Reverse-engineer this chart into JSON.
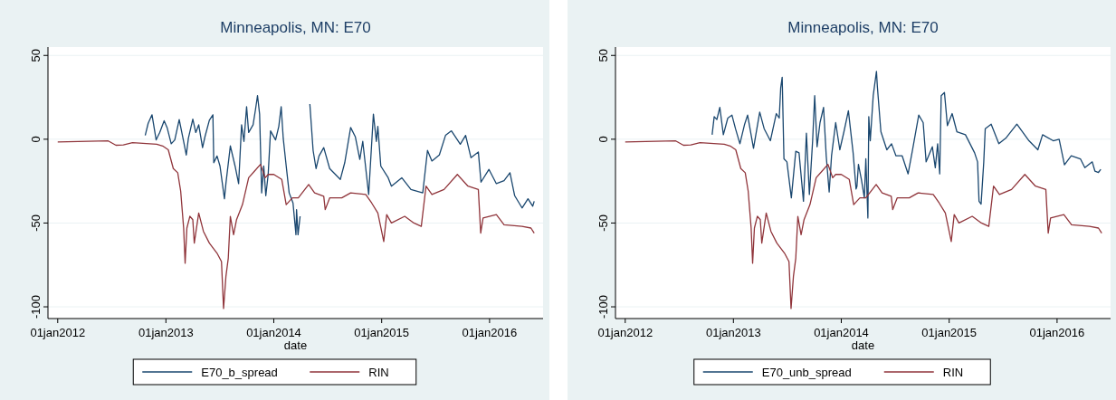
{
  "chart_data": [
    {
      "type": "line",
      "title": "Minneapolis, MN: E70",
      "xlabel": "date",
      "xlim": [
        "2011-11-29",
        "2016-06-30"
      ],
      "xticks": [
        {
          "value": "2012-01-01",
          "label": "01jan2012"
        },
        {
          "value": "2013-01-01",
          "label": "01jan2013"
        },
        {
          "value": "2014-01-01",
          "label": "01jan2014"
        },
        {
          "value": "2015-01-01",
          "label": "01jan2015"
        },
        {
          "value": "2016-01-01",
          "label": "01jan2016"
        }
      ],
      "ylim": [
        -107,
        55
      ],
      "yticks": [
        -100,
        -50,
        0,
        50
      ],
      "grid": "y",
      "legend": "bottom",
      "series": [
        {
          "name": "E70_b_spread",
          "color": "#1a476f",
          "x": [
            "2012-10-23",
            "2012-11-02",
            "2012-11-15",
            "2012-11-29",
            "2012-12-11",
            "2012-12-26",
            "2013-01-05",
            "2013-01-19",
            "2013-01-31",
            "2013-02-15",
            "2013-03-02",
            "2013-03-11",
            "2013-03-18",
            "2013-04-02",
            "2013-04-12",
            "2013-04-22",
            "2013-05-05",
            "2013-05-13",
            "2013-05-28",
            "2013-06-09",
            "2013-06-12",
            "2013-06-23",
            "2013-07-03",
            "2013-07-18",
            "2013-07-23",
            "2013-08-07",
            "2013-08-23",
            "2013-09-04",
            "2013-09-14",
            "2013-09-22",
            "2013-10-01",
            "2013-10-08",
            "2013-10-23",
            "2013-10-31",
            "2013-11-07",
            "2013-11-14",
            "2013-11-21",
            "2013-11-28",
            "2013-12-05",
            "2013-12-13",
            "2013-12-21",
            "2014-01-07",
            "2014-01-18",
            "2014-01-26",
            "2014-02-02",
            "2014-02-12",
            "2014-02-22",
            "2014-03-07",
            "2014-03-17",
            "2014-03-19",
            "2014-03-24",
            "2014-03-31",
            "2014-04-15",
            "2014-05-03",
            "2014-05-14",
            "2014-05-24",
            "2014-06-03",
            "2014-06-19",
            "2014-07-09",
            "2014-08-14",
            "2014-08-29",
            "2014-09-18",
            "2014-10-04",
            "2014-10-19",
            "2014-10-29",
            "2014-11-18",
            "2014-12-04",
            "2014-12-14",
            "2014-12-19",
            "2014-12-29",
            "2015-01-23",
            "2015-02-03",
            "2015-03-10",
            "2015-04-10",
            "2015-05-20",
            "2015-06-05",
            "2015-06-20",
            "2015-07-15",
            "2015-08-05",
            "2015-08-25",
            "2015-09-24",
            "2015-10-12",
            "2015-10-30",
            "2015-11-24",
            "2015-12-03",
            "2015-12-30",
            "2016-01-24",
            "2016-02-19",
            "2016-03-10",
            "2016-03-26",
            "2016-04-20",
            "2016-05-10",
            "2016-05-26",
            "2016-05-31"
          ],
          "values": [
            2.3,
            9.5,
            14.6,
            -0.4,
            4,
            11,
            7,
            -2.7,
            -0.4,
            11.7,
            -1.3,
            -9.4,
            0.5,
            12,
            4,
            8.6,
            -5,
            1.4,
            11.3,
            14.6,
            -14,
            -10,
            -16,
            -35.5,
            -26.5,
            -4,
            -16,
            -26.5,
            8.6,
            -1.3,
            19.4,
            4,
            8.6,
            17.6,
            26,
            15,
            -32,
            -16,
            -33.7,
            -21,
            5,
            -0.4,
            7.7,
            19.4,
            0.5,
            -16,
            -32,
            -38,
            -57,
            -42,
            -57,
            -46,
            null,
            21,
            -6.7,
            -17.5,
            -10,
            -5,
            -17.5,
            -24,
            -14,
            7,
            1.4,
            -12,
            -1.3,
            -33,
            15,
            -1.3,
            7.7,
            -16,
            -23,
            -28,
            -23,
            -30,
            -32,
            -6.7,
            -13,
            -9.4,
            2.3,
            5,
            -3,
            2.3,
            -11,
            -7.6,
            -25.6,
            -18,
            -26.5,
            -24.7,
            -20,
            -33.7,
            -41,
            -35.5,
            -40,
            -37
          ]
        },
        {
          "name": "RIN",
          "color": "#90353b",
          "x": [
            "2012-01-01",
            "2012-06-20",
            "2012-07-16",
            "2012-08-10",
            "2012-09-10",
            "2012-12-01",
            "2012-12-21",
            "2013-01-09",
            "2013-01-26",
            "2013-02-10",
            "2013-02-20",
            "2013-03-02",
            "2013-03-07",
            "2013-03-13",
            "2013-03-23",
            "2013-04-02",
            "2013-04-07",
            "2013-04-22",
            "2013-05-08",
            "2013-05-28",
            "2013-06-23",
            "2013-07-08",
            "2013-07-15",
            "2013-07-23",
            "2013-07-31",
            "2013-08-07",
            "2013-08-18",
            "2013-08-28",
            "2013-09-17",
            "2013-10-08",
            "2013-10-28",
            "2013-11-17",
            "2013-12-03",
            "2013-12-13",
            "2014-01-01",
            "2014-01-28",
            "2014-02-12",
            "2014-03-05",
            "2014-03-25",
            "2014-04-29",
            "2014-05-19",
            "2014-06-19",
            "2014-06-24",
            "2014-07-09",
            "2014-08-19",
            "2014-09-18",
            "2014-11-08",
            "2014-11-28",
            "2014-12-19",
            "2015-01-08",
            "2015-01-18",
            "2015-02-03",
            "2015-03-20",
            "2015-04-20",
            "2015-05-15",
            "2015-05-31",
            "2015-06-20",
            "2015-07-31",
            "2015-09-14",
            "2015-10-20",
            "2015-11-24",
            "2015-12-02",
            "2015-12-10",
            "2016-01-24",
            "2016-02-19",
            "2016-04-20",
            "2016-05-20",
            "2016-05-31"
          ],
          "values": [
            -1.6,
            -1,
            -3.6,
            -3.4,
            -2,
            -3,
            -4,
            -6.3,
            -17.5,
            -20,
            -31,
            -53,
            -74,
            -53,
            -46,
            -48,
            -62,
            -44,
            -55,
            -62,
            -68,
            -73,
            -101,
            -82,
            -71,
            -46,
            -57,
            -48,
            -39,
            -23,
            -19,
            -15,
            -23,
            -21,
            -21,
            -24,
            -39,
            -35,
            -35,
            -27,
            -32,
            -34,
            -42,
            -35,
            -35,
            -32,
            -33,
            -38,
            -44,
            -61,
            -45,
            -50,
            -46,
            -50,
            -52,
            -28,
            -33,
            -30,
            -21,
            -28,
            -30,
            -56,
            -47,
            -45,
            -51,
            -52,
            -53,
            -56
          ]
        }
      ]
    },
    {
      "type": "line",
      "title": "Minneapolis, MN: E70",
      "xlabel": "date",
      "xlim": [
        "2011-11-29",
        "2016-06-30"
      ],
      "xticks": [
        {
          "value": "2012-01-01",
          "label": "01jan2012"
        },
        {
          "value": "2013-01-01",
          "label": "01jan2013"
        },
        {
          "value": "2014-01-01",
          "label": "01jan2014"
        },
        {
          "value": "2015-01-01",
          "label": "01jan2015"
        },
        {
          "value": "2016-01-01",
          "label": "01jan2016"
        }
      ],
      "ylim": [
        -107,
        55
      ],
      "yticks": [
        -100,
        -50,
        0,
        50
      ],
      "grid": "y",
      "legend": "bottom",
      "series": [
        {
          "name": "E70_unb_spread",
          "color": "#1a476f",
          "x": [
            "2012-10-21",
            "2012-10-28",
            "2012-11-06",
            "2012-11-16",
            "2012-11-28",
            "2012-12-13",
            "2012-12-27",
            "2013-01-08",
            "2013-01-23",
            "2013-02-08",
            "2013-02-18",
            "2013-03-10",
            "2013-03-31",
            "2013-04-15",
            "2013-05-06",
            "2013-05-26",
            "2013-06-05",
            "2013-06-10",
            "2013-06-15",
            "2013-06-21",
            "2013-07-01",
            "2013-07-16",
            "2013-07-31",
            "2013-08-11",
            "2013-08-26",
            "2013-09-05",
            "2013-09-15",
            "2013-09-26",
            "2013-10-03",
            "2013-10-11",
            "2013-10-21",
            "2013-11-02",
            "2013-11-11",
            "2013-11-21",
            "2013-11-29",
            "2013-12-13",
            "2013-12-27",
            "2014-01-10",
            "2014-01-25",
            "2014-02-10",
            "2014-02-20",
            "2014-02-23",
            "2014-02-28",
            "2014-03-10",
            "2014-03-20",
            "2014-03-25",
            "2014-04-01",
            "2014-04-04",
            "2014-04-09",
            "2014-04-19",
            "2014-04-30",
            "2014-05-03",
            "2014-05-15",
            "2014-06-04",
            "2014-06-20",
            "2014-07-05",
            "2014-07-26",
            "2014-08-15",
            "2014-08-30",
            "2014-09-20",
            "2014-10-05",
            "2014-10-15",
            "2014-11-05",
            "2014-11-15",
            "2014-11-23",
            "2014-11-30",
            "2014-12-05",
            "2014-12-16",
            "2014-12-26",
            "2015-01-11",
            "2015-01-27",
            "2015-02-25",
            "2015-03-28",
            "2015-04-07",
            "2015-04-12",
            "2015-04-19",
            "2015-04-28",
            "2015-05-03",
            "2015-05-23",
            "2015-06-18",
            "2015-07-13",
            "2015-08-18",
            "2015-09-28",
            "2015-10-28",
            "2015-11-13",
            "2015-12-19",
            "2016-01-08",
            "2016-01-26",
            "2016-02-18",
            "2016-03-20",
            "2016-04-04",
            "2016-04-29",
            "2016-05-08",
            "2016-05-20",
            "2016-05-28"
          ],
          "values": [
            2.7,
            13.5,
            11.7,
            19,
            2.7,
            12.6,
            14.4,
            6.3,
            -2.7,
            9,
            14.4,
            -5.4,
            16.2,
            6.3,
            -0.9,
            15.3,
            12.6,
            30.6,
            37,
            -11.7,
            -13.5,
            -35,
            -7.2,
            -8.1,
            -37,
            3.6,
            -33,
            -0.9,
            26,
            -4.5,
            9.9,
            19,
            -9.9,
            -31.5,
            -9.9,
            9.9,
            -6.3,
            4.5,
            17,
            -8.1,
            -29.7,
            -28,
            -15,
            -24,
            -35,
            -11.7,
            -47,
            13.5,
            -0.9,
            26,
            40.5,
            31.5,
            4.5,
            -6.3,
            -2.7,
            -9.9,
            -9.9,
            -20.7,
            -6.3,
            14.4,
            9.9,
            -13.5,
            -4.5,
            -17,
            -2.7,
            -20.7,
            26,
            27.9,
            8.1,
            15.3,
            4.5,
            2.7,
            -8.1,
            -13.5,
            -37,
            -38.7,
            -13.5,
            6.3,
            9,
            -2.7,
            0.9,
            9,
            -0.9,
            -6.3,
            2.7,
            -0.9,
            0,
            -15.3,
            -9.9,
            -11.7,
            -17,
            -13.5,
            -19,
            -19.8,
            -18
          ]
        },
        {
          "name": "RIN",
          "color": "#90353b",
          "x": [
            "2012-01-01",
            "2012-06-20",
            "2012-07-16",
            "2012-08-10",
            "2012-09-10",
            "2012-12-01",
            "2012-12-21",
            "2013-01-09",
            "2013-01-26",
            "2013-02-10",
            "2013-02-20",
            "2013-03-02",
            "2013-03-07",
            "2013-03-13",
            "2013-03-23",
            "2013-04-02",
            "2013-04-07",
            "2013-04-22",
            "2013-05-08",
            "2013-05-28",
            "2013-06-23",
            "2013-07-08",
            "2013-07-15",
            "2013-07-23",
            "2013-07-31",
            "2013-08-07",
            "2013-08-18",
            "2013-08-28",
            "2013-09-17",
            "2013-10-08",
            "2013-10-28",
            "2013-11-17",
            "2013-12-03",
            "2013-12-13",
            "2014-01-01",
            "2014-01-28",
            "2014-02-12",
            "2014-03-05",
            "2014-03-25",
            "2014-04-29",
            "2014-05-19",
            "2014-06-19",
            "2014-06-24",
            "2014-07-09",
            "2014-08-19",
            "2014-09-18",
            "2014-11-08",
            "2014-11-28",
            "2014-12-19",
            "2015-01-08",
            "2015-01-18",
            "2015-02-03",
            "2015-03-20",
            "2015-04-20",
            "2015-05-15",
            "2015-05-31",
            "2015-06-20",
            "2015-07-31",
            "2015-09-14",
            "2015-10-20",
            "2015-11-24",
            "2015-12-02",
            "2015-12-10",
            "2016-01-24",
            "2016-02-19",
            "2016-04-20",
            "2016-05-20",
            "2016-05-31"
          ],
          "values": [
            -1.6,
            -1,
            -3.6,
            -3.4,
            -2,
            -3,
            -4,
            -6.3,
            -17.5,
            -20,
            -31,
            -53,
            -74,
            -53,
            -46,
            -48,
            -62,
            -44,
            -55,
            -62,
            -68,
            -73,
            -101,
            -82,
            -71,
            -46,
            -57,
            -48,
            -39,
            -23,
            -19,
            -15,
            -23,
            -21,
            -21,
            -24,
            -39,
            -35,
            -35,
            -27,
            -32,
            -34,
            -42,
            -35,
            -35,
            -32,
            -33,
            -38,
            -44,
            -61,
            -45,
            -50,
            -46,
            -50,
            -52,
            -28,
            -33,
            -30,
            -21,
            -28,
            -30,
            -56,
            -47,
            -45,
            -51,
            -52,
            -53,
            -56
          ]
        }
      ]
    }
  ]
}
